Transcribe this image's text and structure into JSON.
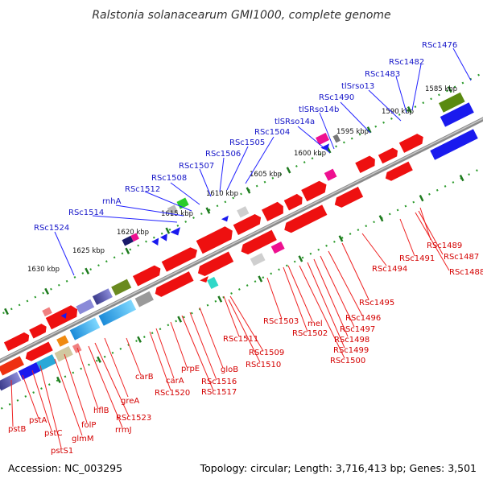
{
  "title": "Ralstonia solanacearum GMI1000, complete genome",
  "footer": {
    "accession": "Accession: NC_003295",
    "stats": "Topology: circular; Length: 3,716,413 bp; Genes: 3,501"
  },
  "kbp_ticks": [
    "1585 kbp",
    "1590 kbp",
    "1595 kbp",
    "1600 kbp",
    "1605 kbp",
    "1610 kbp",
    "1615 kbp",
    "1620 kbp",
    "1625 kbp",
    "1630 kbp"
  ],
  "top_labels": [
    "RSc1476",
    "RSc1482",
    "RSc1483",
    "tlSrso13",
    "RSc1490",
    "tlSRso14b",
    "tlSRso14a",
    "RSc1504",
    "RSc1505",
    "RSc1506",
    "RSc1507",
    "RSc1508",
    "RSc1512",
    "rnhA",
    "RSc1514",
    "RSc1524"
  ],
  "bottom_labels": [
    "RSc1489",
    "RSc1487",
    "RSc1488",
    "RSc1491",
    "RSc1494",
    "RSc1495",
    "RSc1496",
    "RSc1497",
    "RSc1498",
    "RSc1499",
    "RSc1500",
    "mel",
    "RSc1502",
    "RSc1503",
    "RSc1511",
    "RSc1509",
    "RSc1510",
    "gloB",
    "RSc1516",
    "RSc1517",
    "prpE",
    "carA",
    "RSc1520",
    "carB",
    "greA",
    "RSc1523",
    "rrmJ",
    "hflB",
    "folP",
    "glmM",
    "pstS1",
    "pstC",
    "pstA",
    "pstB"
  ],
  "colors": {
    "top_label": "#1515c8",
    "bottom_label": "#d40000",
    "backbone": "#8a8a8a",
    "dots": "#2a9a2a"
  }
}
